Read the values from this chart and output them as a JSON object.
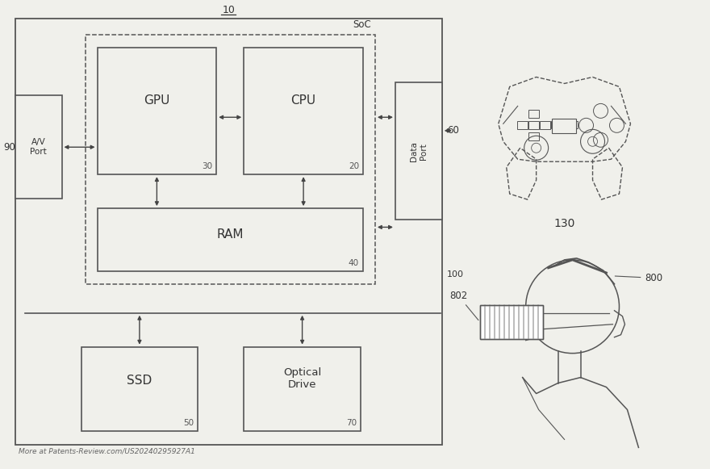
{
  "bg_color": "#f0f0eb",
  "fig_bg": "#f0f0eb",
  "watermark": "More at Patents-Review.com/US20240295927A1",
  "label_90": "90",
  "label_60": "60",
  "label_100": "100",
  "label_10": "10",
  "soc_label": "SoC",
  "gpu_label": "GPU",
  "gpu_num": "30",
  "cpu_label": "CPU",
  "cpu_num": "20",
  "ram_label": "RAM",
  "ram_num": "40",
  "ssd_label": "SSD",
  "ssd_num": "50",
  "opt_label": "Optical\nDrive",
  "opt_num": "70",
  "av_label": "A/V\nPort",
  "data_label": "Data\nPort",
  "ctrl_num": "130",
  "vr_800": "800",
  "vr_802": "802"
}
